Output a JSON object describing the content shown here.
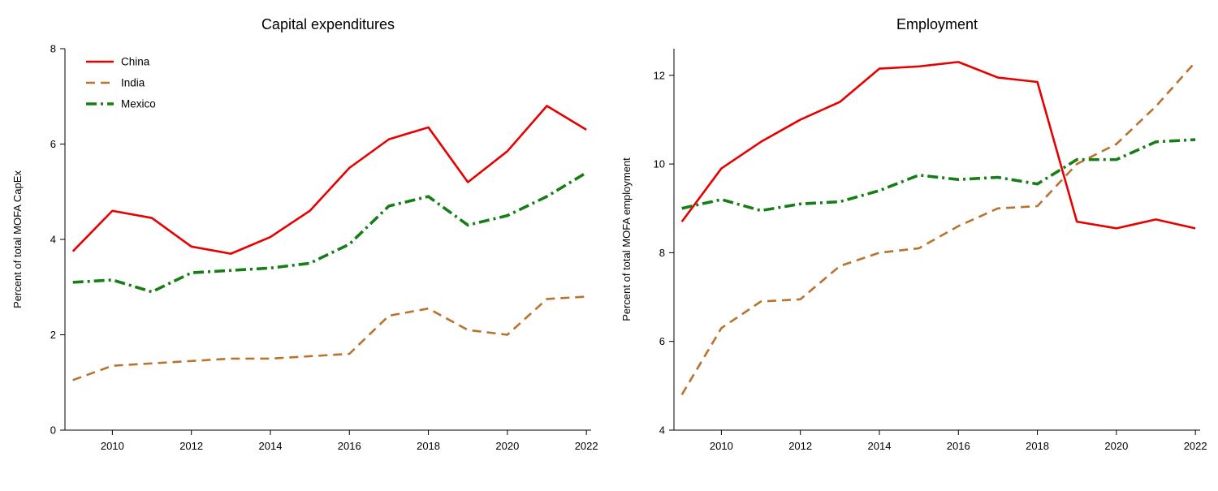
{
  "chart_data": [
    {
      "type": "line",
      "title": "Capital expenditures",
      "ylabel": "Percent of total MOFA CapEx",
      "x": [
        2009,
        2010,
        2011,
        2012,
        2013,
        2014,
        2015,
        2016,
        2017,
        2018,
        2019,
        2020,
        2021,
        2022
      ],
      "xticks": [
        2010,
        2012,
        2014,
        2016,
        2018,
        2020,
        2022
      ],
      "ylim": [
        0,
        8
      ],
      "yticks": [
        0,
        2,
        4,
        6,
        8
      ],
      "grid": false,
      "legend": true,
      "legend_position": "top-left",
      "series": [
        {
          "name": "China",
          "color": "#e60000",
          "dash": "solid",
          "width": 2.6,
          "values": [
            3.75,
            4.6,
            4.45,
            3.85,
            3.7,
            4.05,
            4.6,
            5.5,
            6.1,
            6.35,
            5.2,
            5.85,
            6.8,
            6.3
          ]
        },
        {
          "name": "India",
          "color": "#b8732e",
          "dash": "dash",
          "width": 2.6,
          "values": [
            1.05,
            1.35,
            1.4,
            1.45,
            1.5,
            1.5,
            1.55,
            1.6,
            2.4,
            2.55,
            2.1,
            2.0,
            2.75,
            2.8
          ]
        },
        {
          "name": "Mexico",
          "color": "#177d17",
          "dash": "dashdot",
          "width": 3.6,
          "values": [
            3.1,
            3.15,
            2.9,
            3.3,
            3.35,
            3.4,
            3.5,
            3.9,
            4.7,
            4.9,
            4.3,
            4.5,
            4.9,
            5.4
          ]
        }
      ]
    },
    {
      "type": "line",
      "title": "Employment",
      "ylabel": "Percent of total MOFA employment",
      "x": [
        2009,
        2010,
        2011,
        2012,
        2013,
        2014,
        2015,
        2016,
        2017,
        2018,
        2019,
        2020,
        2021,
        2022
      ],
      "xticks": [
        2010,
        2012,
        2014,
        2016,
        2018,
        2020,
        2022
      ],
      "ylim": [
        4,
        12.6
      ],
      "yticks": [
        4,
        6,
        8,
        10,
        12
      ],
      "grid": false,
      "legend": false,
      "legend_position": "none",
      "series": [
        {
          "name": "China",
          "color": "#e60000",
          "dash": "solid",
          "width": 2.6,
          "values": [
            8.7,
            9.9,
            10.5,
            11.0,
            11.4,
            12.15,
            12.2,
            12.3,
            11.95,
            11.85,
            8.7,
            8.55,
            8.75,
            8.55
          ]
        },
        {
          "name": "India",
          "color": "#b8732e",
          "dash": "dash",
          "width": 2.6,
          "values": [
            4.8,
            6.3,
            6.9,
            6.95,
            7.7,
            8.0,
            8.1,
            8.6,
            9.0,
            9.05,
            10.0,
            10.45,
            11.3,
            12.3
          ]
        },
        {
          "name": "Mexico",
          "color": "#177d17",
          "dash": "dashdot",
          "width": 3.6,
          "values": [
            9.0,
            9.2,
            8.95,
            9.1,
            9.15,
            9.4,
            9.75,
            9.65,
            9.7,
            9.55,
            10.1,
            10.1,
            10.5,
            10.55
          ]
        }
      ]
    }
  ]
}
